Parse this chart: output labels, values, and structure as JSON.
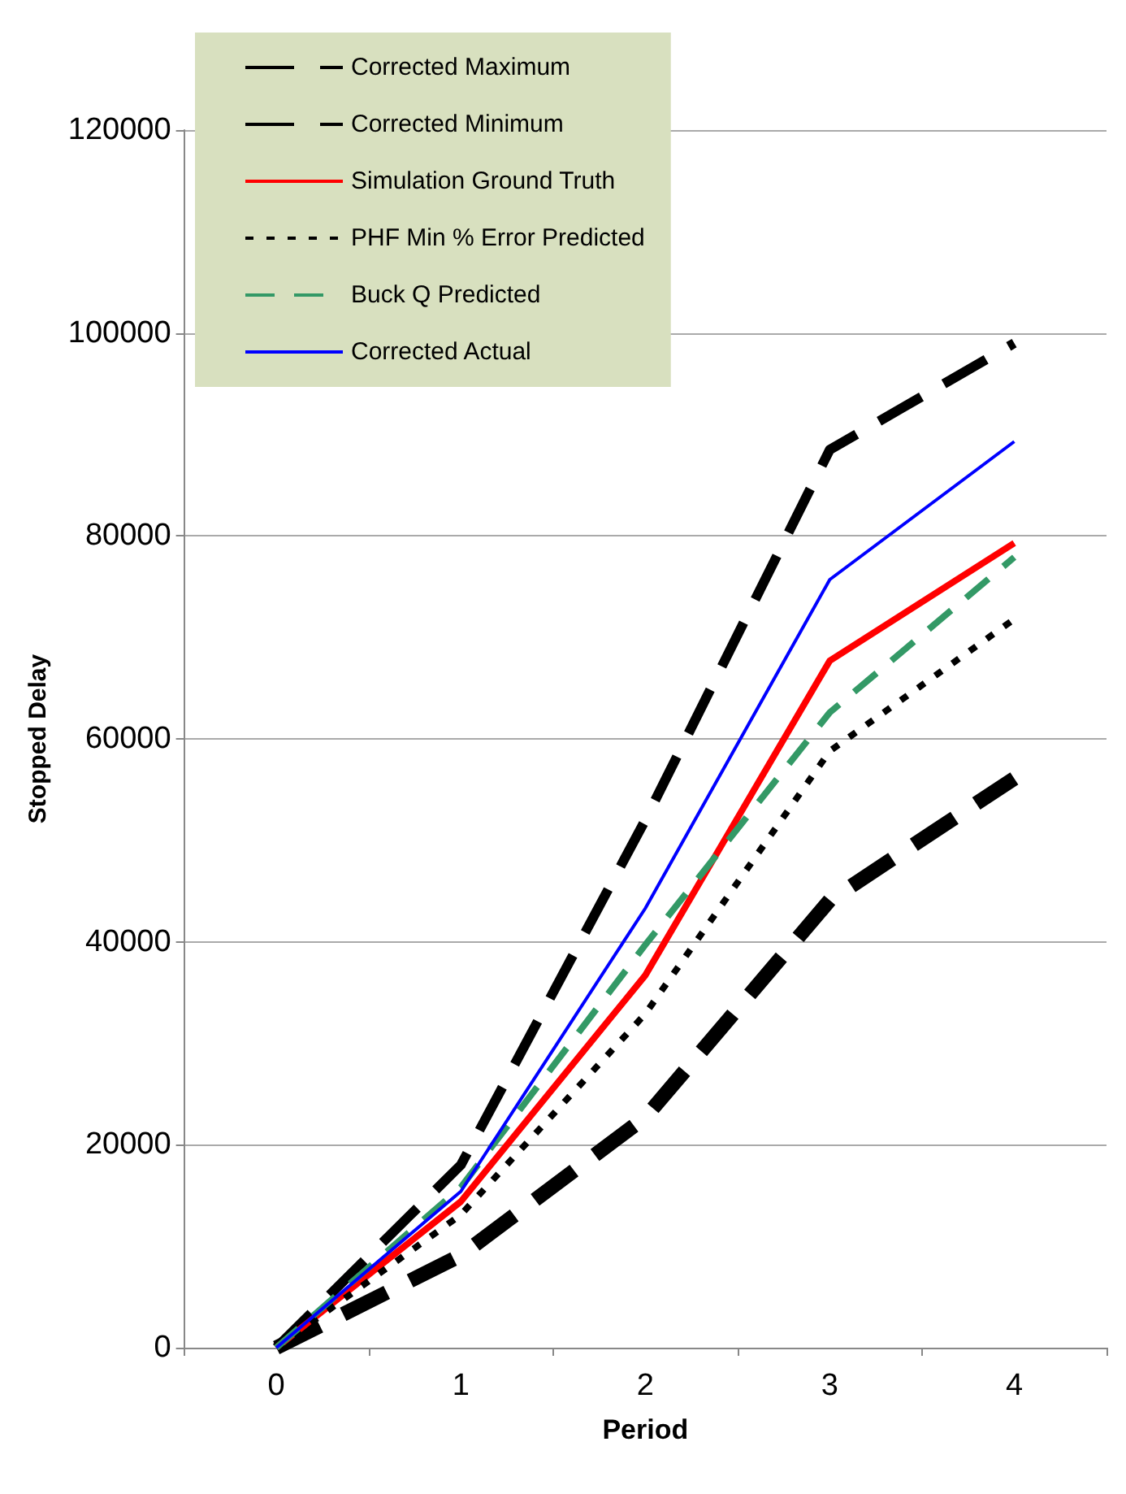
{
  "chart_data": {
    "type": "line",
    "xlabel": "Period",
    "ylabel": "Stopped Delay",
    "categories": [
      "0",
      "1",
      "2",
      "3",
      "4"
    ],
    "series": [
      {
        "name": "Corrected Maximum",
        "color": "#000000",
        "line_style": "dashed",
        "values": [
          0,
          18000,
          52000,
          88500,
          99000
        ]
      },
      {
        "name": "Corrected Minimum",
        "color": "#000000",
        "line_style": "dashed",
        "values": [
          0,
          9100,
          22700,
          44100,
          56100
        ]
      },
      {
        "name": "Simulation Ground Truth",
        "color": "#ff0000",
        "line_style": "solid",
        "values": [
          0,
          14400,
          36700,
          67700,
          79300
        ]
      },
      {
        "name": "PHF Min % Error Predicted",
        "color": "#000000",
        "line_style": "dotted",
        "values": [
          0,
          13100,
          32900,
          58800,
          71800
        ]
      },
      {
        "name": "Buck Q Predicted",
        "color": "#339966",
        "line_style": "dashed",
        "values": [
          0,
          15800,
          39700,
          62600,
          77900
        ]
      },
      {
        "name": "Corrected Actual",
        "color": "#0000ff",
        "line_style": "solid",
        "values": [
          0,
          15400,
          43300,
          75700,
          89300
        ]
      }
    ],
    "ylim": [
      0,
      120000
    ],
    "yticks": [
      0,
      20000,
      40000,
      60000,
      80000,
      100000,
      120000
    ],
    "grid": "y",
    "legend": "top left",
    "marker": "none"
  }
}
